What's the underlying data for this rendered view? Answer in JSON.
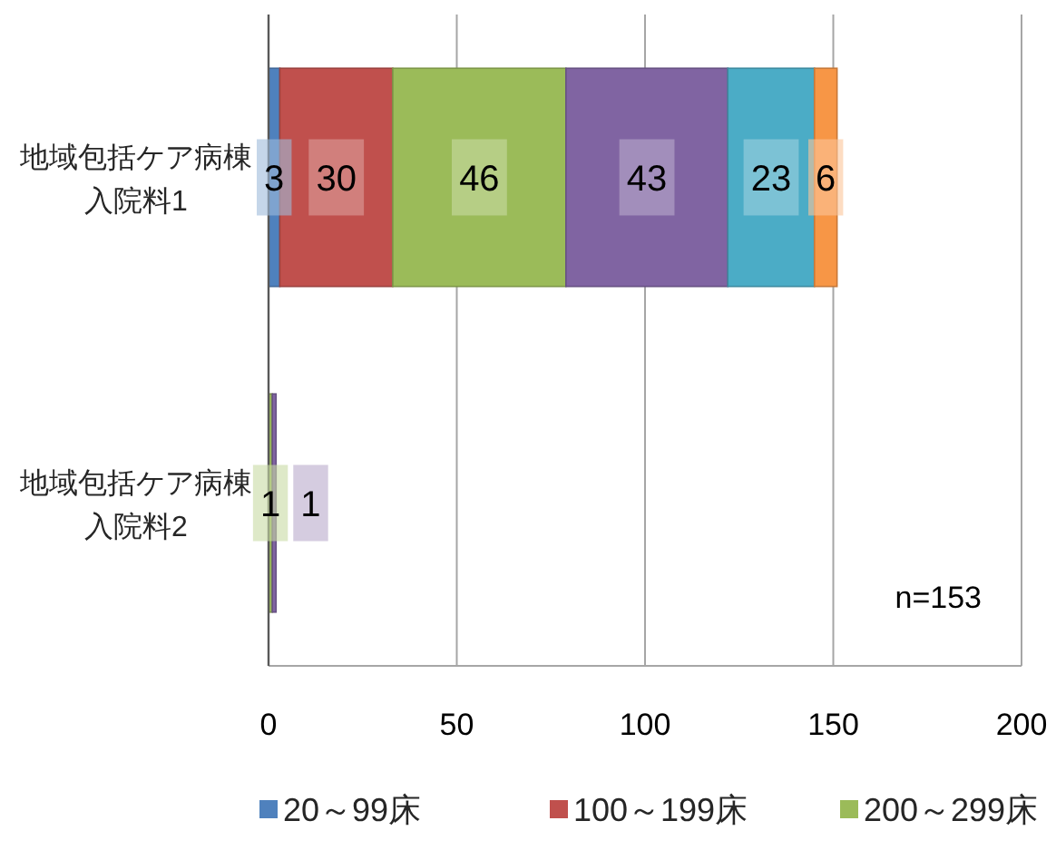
{
  "chart_data": {
    "type": "bar",
    "orientation": "horizontal",
    "stacked": true,
    "categories": [
      "地域包括ケア病棟入院料1",
      "地域包括ケア病棟入院料2"
    ],
    "series": [
      {
        "name": "20～99床",
        "color": "#4f81bd",
        "values": [
          3,
          null
        ]
      },
      {
        "name": "100～199床",
        "color": "#c0504d",
        "values": [
          30,
          null
        ]
      },
      {
        "name": "200～299床",
        "color": "#9bbb59",
        "values": [
          46,
          1
        ]
      },
      {
        "color": "#8064a2",
        "values": [
          43,
          1
        ]
      },
      {
        "color": "#4bacc6",
        "values": [
          23,
          null
        ]
      },
      {
        "color": "#f79646",
        "values": [
          6,
          null
        ]
      }
    ],
    "xlim": [
      0,
      200
    ],
    "xticks": [
      0,
      50,
      100,
      150,
      200
    ],
    "grid": "x",
    "legend": "bottom",
    "data_labels": true,
    "annotations": [
      "n=153"
    ]
  }
}
